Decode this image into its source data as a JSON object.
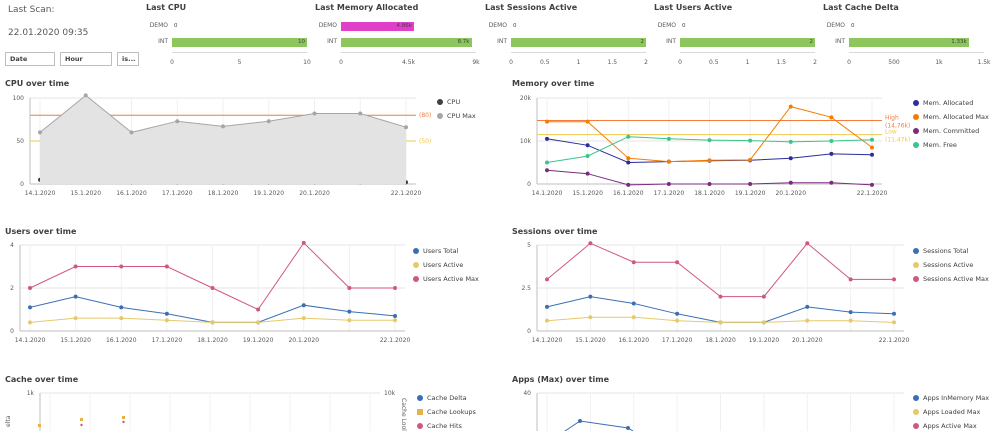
{
  "scan": {
    "label": "Last Scan:",
    "value": "22.01.2020 09:35"
  },
  "filters": {
    "date": "Date",
    "hour": "Hour",
    "is": "is..."
  },
  "last_charts": [
    {
      "title": "Last CPU",
      "rows": [
        {
          "cat": "DEMO",
          "value": 0,
          "label": "0"
        },
        {
          "cat": "INT",
          "value": 10,
          "label": "10"
        }
      ],
      "max": 10,
      "ticks": [
        "0",
        "5",
        "10"
      ],
      "color": "#8dc65d"
    },
    {
      "title": "Last Memory Allocated",
      "rows": [
        {
          "cat": "DEMO",
          "value": 4.86,
          "label": "4.86k"
        },
        {
          "cat": "INT",
          "value": 8.7,
          "label": "8.7k"
        }
      ],
      "max": 9,
      "ticks": [
        "0",
        "4.5k",
        "9k"
      ],
      "color": "#8dc65d",
      "demo_color": "#e040c8"
    },
    {
      "title": "Last Sessions Active",
      "rows": [
        {
          "cat": "DEMO",
          "value": 0,
          "label": "0"
        },
        {
          "cat": "INT",
          "value": 2,
          "label": "2"
        }
      ],
      "max": 2,
      "ticks": [
        "0",
        "0.5",
        "1",
        "1.5",
        "2"
      ],
      "color": "#8dc65d"
    },
    {
      "title": "Last Users Active",
      "rows": [
        {
          "cat": "DEMO",
          "value": 0,
          "label": "0"
        },
        {
          "cat": "INT",
          "value": 2,
          "label": "2"
        }
      ],
      "max": 2,
      "ticks": [
        "0",
        "0.5",
        "1",
        "1.5",
        "2"
      ],
      "color": "#8dc65d"
    },
    {
      "title": "Last Cache Delta",
      "rows": [
        {
          "cat": "DEMO",
          "value": 0,
          "label": "0"
        },
        {
          "cat": "INT",
          "value": 1.33,
          "label": "1.33k"
        }
      ],
      "max": 1.5,
      "ticks": [
        "0",
        "500",
        "1k",
        "1.5k"
      ],
      "color": "#8dc65d"
    }
  ],
  "chart_data": [
    {
      "type": "area",
      "title": "CPU over time",
      "categories": [
        "14.1.2020",
        "15.1.2020",
        "16.1.2020",
        "17.1.2020",
        "18.1.2020",
        "19.1.2020",
        "20.1.2020",
        "",
        "22.1.2020"
      ],
      "ylim": [
        0,
        100
      ],
      "yticks": [
        "0",
        "50",
        "100"
      ],
      "series": [
        {
          "name": "CPU",
          "color": "#404040",
          "values": [
            5,
            3,
            2,
            2,
            2,
            2,
            2,
            2,
            2
          ]
        },
        {
          "name": "CPU Max",
          "color": "#a6a6a6",
          "values": [
            60,
            103,
            60,
            73,
            67,
            73,
            82,
            82,
            66
          ]
        }
      ],
      "reference_lines": [
        {
          "value": 80,
          "label": "(80)",
          "color": "#f47c3c"
        },
        {
          "value": 50,
          "label": "(50)",
          "color": "#f2c94c"
        }
      ]
    },
    {
      "type": "line",
      "title": "Memory over time",
      "categories": [
        "14.1.2020",
        "15.1.2020",
        "16.1.2020",
        "17.1.2020",
        "18.1.2020",
        "19.1.2020",
        "20.1.2020",
        "",
        "22.1.2020"
      ],
      "ylim": [
        0,
        20000
      ],
      "yticks": [
        "0",
        "10k",
        "20k"
      ],
      "series": [
        {
          "name": "Mem. Allocated",
          "color": "#2b2d9c",
          "values": [
            10500,
            9000,
            5000,
            5200,
            5400,
            5500,
            6000,
            7000,
            6800
          ]
        },
        {
          "name": "Mem. Allocated Max",
          "color": "#f57c00",
          "values": [
            14500,
            14500,
            6000,
            5200,
            5500,
            5600,
            18000,
            15500,
            8500
          ]
        },
        {
          "name": "Mem. Committed",
          "color": "#7b2c7e",
          "values": [
            3200,
            2400,
            -200,
            0,
            0,
            0,
            300,
            300,
            -200
          ]
        },
        {
          "name": "Mem. Free",
          "color": "#3cc48c",
          "values": [
            5000,
            6500,
            11000,
            10500,
            10200,
            10100,
            9800,
            10000,
            10300
          ]
        }
      ],
      "reference_lines": [
        {
          "value": 14756,
          "label": "High",
          "sublabel": "(14,76k)",
          "color": "#f47c3c"
        },
        {
          "value": 11474,
          "label": "Low",
          "sublabel": "(11,47k)",
          "color": "#f2c94c"
        }
      ]
    },
    {
      "type": "line",
      "title": "Users over time",
      "categories": [
        "14.1.2020",
        "15.1.2020",
        "16.1.2020",
        "17.1.2020",
        "18.1.2020",
        "19.1.2020",
        "20.1.2020",
        "",
        "22.1.2020"
      ],
      "ylim": [
        0,
        4
      ],
      "yticks": [
        "0",
        "2",
        "4"
      ],
      "series": [
        {
          "name": "Users Total",
          "color": "#3b6fb5",
          "values": [
            1.1,
            1.6,
            1.1,
            0.8,
            0.4,
            0.4,
            1.2,
            0.9,
            0.7
          ]
        },
        {
          "name": "Users Active",
          "color": "#e6c96a",
          "values": [
            0.4,
            0.6,
            0.6,
            0.5,
            0.4,
            0.4,
            0.6,
            0.5,
            0.5
          ]
        },
        {
          "name": "Users Active Max",
          "color": "#d0587e",
          "values": [
            2,
            3,
            3,
            3,
            2,
            1,
            4.1,
            2,
            2
          ]
        }
      ]
    },
    {
      "type": "line",
      "title": "Sessions over time",
      "categories": [
        "14.1.2020",
        "15.1.2020",
        "16.1.2020",
        "17.1.2020",
        "18.1.2020",
        "19.1.2020",
        "20.1.2020",
        "",
        "22.1.2020"
      ],
      "ylim": [
        0,
        5
      ],
      "yticks": [
        "0",
        "2.5",
        "5"
      ],
      "series": [
        {
          "name": "Sessions Total",
          "color": "#3b6fb5",
          "values": [
            1.4,
            2,
            1.6,
            1,
            0.5,
            0.5,
            1.4,
            1.1,
            1
          ]
        },
        {
          "name": "Sessions Active",
          "color": "#e6c96a",
          "values": [
            0.6,
            0.8,
            0.8,
            0.6,
            0.5,
            0.5,
            0.6,
            0.6,
            0.5
          ]
        },
        {
          "name": "Sessions Active Max",
          "color": "#d0587e",
          "values": [
            3,
            5.1,
            4,
            4,
            2,
            2,
            5.1,
            3,
            3
          ]
        }
      ]
    },
    {
      "type": "line",
      "title": "Cache over time",
      "ylim": [
        0,
        1000
      ],
      "yticks": [
        "1k"
      ],
      "y2ticks": [
        "10k"
      ],
      "ylabel": "elta",
      "y2label": "Cache Lool",
      "series": [
        {
          "name": "Cache Delta",
          "color": "#3b6fb5"
        },
        {
          "name": "Cache Lookups",
          "color": "#e8b04a"
        },
        {
          "name": "Cache Hits",
          "color": "#d0587e"
        }
      ]
    },
    {
      "type": "line",
      "title": "Apps (Max) over time",
      "ylim": [
        0,
        40
      ],
      "yticks": [
        "40"
      ],
      "series": [
        {
          "name": "Apps InMemory Max",
          "color": "#3b6fb5"
        },
        {
          "name": "Apps Loaded Max",
          "color": "#e6c96a"
        },
        {
          "name": "Apps Active Max",
          "color": "#d0587e"
        }
      ]
    }
  ]
}
